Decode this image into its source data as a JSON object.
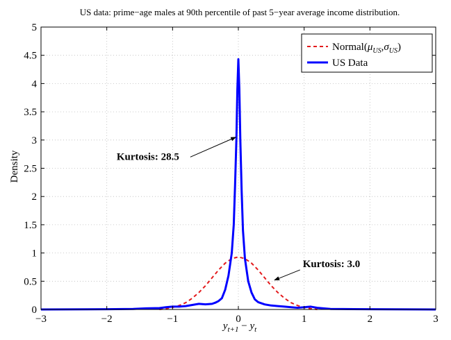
{
  "chart_data": {
    "type": "line",
    "title": "US data: prime−age males at 90th percentile of past 5−year average income distribution.",
    "xlabel": "y_{t+1} − y_t",
    "ylabel": "Density",
    "xlim": [
      -3,
      3
    ],
    "ylim": [
      0,
      5
    ],
    "xticks": [
      -3,
      -2,
      -1,
      0,
      1,
      2,
      3
    ],
    "xtick_labels": [
      "−3",
      "−2",
      "−1",
      "0",
      "1",
      "2",
      "3"
    ],
    "yticks": [
      0,
      0.5,
      1,
      1.5,
      2,
      2.5,
      3,
      3.5,
      4,
      4.5,
      5
    ],
    "ytick_labels": [
      "0",
      "0.5",
      "1",
      "1.5",
      "2",
      "2.5",
      "3",
      "3.5",
      "4",
      "4.5",
      "5"
    ],
    "grid": true,
    "legend_position": "top-right",
    "series": [
      {
        "name": "Normal(μ_US, σ_US)",
        "style": "dashed",
        "color": "#e31a1c",
        "points": [
          [
            -1.2,
            0.0
          ],
          [
            -1.1,
            0.015
          ],
          [
            -1.0,
            0.035
          ],
          [
            -0.9,
            0.07
          ],
          [
            -0.8,
            0.12
          ],
          [
            -0.7,
            0.2
          ],
          [
            -0.6,
            0.3
          ],
          [
            -0.5,
            0.42
          ],
          [
            -0.4,
            0.56
          ],
          [
            -0.3,
            0.7
          ],
          [
            -0.2,
            0.82
          ],
          [
            -0.1,
            0.9
          ],
          [
            0.0,
            0.93
          ],
          [
            0.1,
            0.9
          ],
          [
            0.2,
            0.82
          ],
          [
            0.3,
            0.7
          ],
          [
            0.4,
            0.56
          ],
          [
            0.5,
            0.42
          ],
          [
            0.6,
            0.3
          ],
          [
            0.7,
            0.2
          ],
          [
            0.8,
            0.12
          ],
          [
            0.9,
            0.07
          ],
          [
            1.0,
            0.035
          ],
          [
            1.1,
            0.015
          ],
          [
            1.2,
            0.0
          ]
        ]
      },
      {
        "name": "US Data",
        "style": "solid",
        "color": "#0000ff",
        "points": [
          [
            -3.0,
            0.0
          ],
          [
            -2.0,
            0.005
          ],
          [
            -1.6,
            0.01
          ],
          [
            -1.4,
            0.02
          ],
          [
            -1.2,
            0.025
          ],
          [
            -1.1,
            0.04
          ],
          [
            -1.0,
            0.05
          ],
          [
            -0.9,
            0.05
          ],
          [
            -0.8,
            0.06
          ],
          [
            -0.7,
            0.08
          ],
          [
            -0.6,
            0.1
          ],
          [
            -0.5,
            0.09
          ],
          [
            -0.4,
            0.1
          ],
          [
            -0.35,
            0.12
          ],
          [
            -0.3,
            0.15
          ],
          [
            -0.25,
            0.2
          ],
          [
            -0.2,
            0.35
          ],
          [
            -0.15,
            0.6
          ],
          [
            -0.1,
            1.0
          ],
          [
            -0.07,
            1.5
          ],
          [
            -0.05,
            2.2
          ],
          [
            -0.03,
            3.0
          ],
          [
            -0.015,
            3.9
          ],
          [
            0.0,
            4.43
          ],
          [
            0.015,
            3.9
          ],
          [
            0.03,
            3.0
          ],
          [
            0.05,
            2.1
          ],
          [
            0.07,
            1.4
          ],
          [
            0.1,
            0.9
          ],
          [
            0.15,
            0.5
          ],
          [
            0.2,
            0.3
          ],
          [
            0.25,
            0.18
          ],
          [
            0.3,
            0.13
          ],
          [
            0.4,
            0.09
          ],
          [
            0.5,
            0.07
          ],
          [
            0.6,
            0.06
          ],
          [
            0.7,
            0.05
          ],
          [
            0.8,
            0.04
          ],
          [
            0.9,
            0.03
          ],
          [
            1.0,
            0.04
          ],
          [
            1.1,
            0.05
          ],
          [
            1.2,
            0.03
          ],
          [
            1.4,
            0.01
          ],
          [
            1.6,
            0.008
          ],
          [
            2.0,
            0.004
          ],
          [
            3.0,
            0.0
          ]
        ]
      }
    ],
    "annotations": [
      {
        "text": "Kurtosis: 28.5",
        "x": -1.85,
        "y": 2.65,
        "arrow_to": [
          -0.04,
          3.05
        ]
      },
      {
        "text": "Kurtosis: 3.0",
        "x": 0.98,
        "y": 0.75,
        "arrow_to": [
          0.55,
          0.52
        ]
      }
    ]
  }
}
